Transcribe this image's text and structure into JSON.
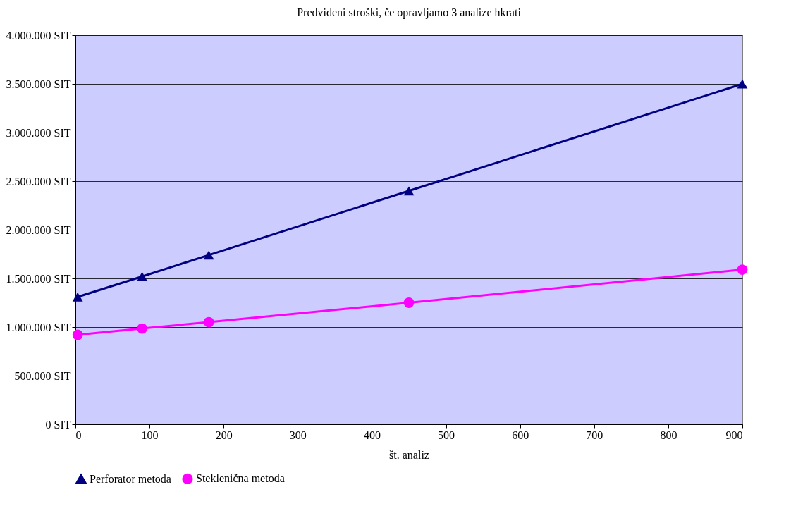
{
  "chart_data": {
    "type": "line",
    "title": "Predvideni stroški, če opravljamo 3 analize hkrati",
    "xlabel": "št. analiz",
    "x": [
      3,
      90,
      180,
      450,
      900
    ],
    "series": [
      {
        "name": "Perforator metoda",
        "color": "#000080",
        "marker": "triangle",
        "values": [
          1310000,
          1520000,
          1740000,
          2400000,
          3500000
        ]
      },
      {
        "name": "Steklenična metoda",
        "color": "#ff00ff",
        "marker": "circle",
        "values": [
          920000,
          985000,
          1050000,
          1250000,
          1590000
        ]
      }
    ],
    "xlim": [
      0,
      900
    ],
    "xticks": [
      0,
      100,
      200,
      300,
      400,
      500,
      600,
      700,
      800,
      900
    ],
    "ylim": [
      0,
      4000000
    ],
    "yticks": [
      {
        "value": 0,
        "label": "0 SIT"
      },
      {
        "value": 500000,
        "label": "500.000 SIT"
      },
      {
        "value": 1000000,
        "label": "1.000.000 SIT"
      },
      {
        "value": 1500000,
        "label": "1.500.000 SIT"
      },
      {
        "value": 2000000,
        "label": "2.000.000 SIT"
      },
      {
        "value": 2500000,
        "label": "2.500.000 SIT"
      },
      {
        "value": 3000000,
        "label": "3.000.000 SIT"
      },
      {
        "value": 3500000,
        "label": "3.500.000 SIT"
      },
      {
        "value": 4000000,
        "label": "4.000.000 SIT"
      }
    ],
    "grid": "y",
    "legend": "bottom",
    "line_style": "solid"
  }
}
